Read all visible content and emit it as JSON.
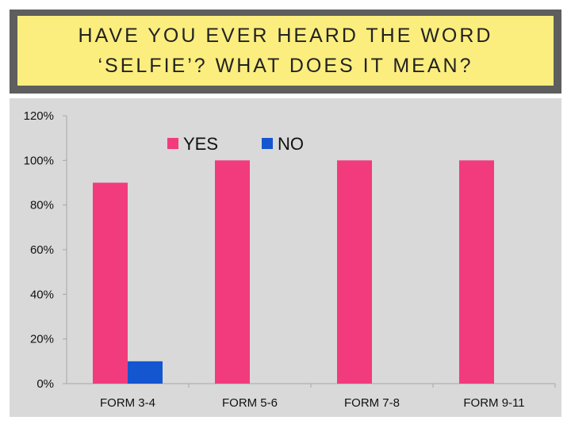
{
  "title": {
    "line1": "HAVE YOU EVER HEARD THE WORD",
    "line2": "‘SELFIE’? WHAT DOES IT MEAN?"
  },
  "colors": {
    "title_bg": "#fbee7e",
    "frame": "#5e5e5e",
    "plot_bg": "#d9d9d9",
    "yes": "#f23b7c",
    "no": "#1455d0"
  },
  "chart_data": {
    "type": "bar",
    "categories": [
      "FORM 3-4",
      "FORM 5-6",
      "FORM 7-8",
      "FORM 9-11"
    ],
    "series": [
      {
        "name": "YES",
        "values": [
          90,
          100,
          100,
          100
        ]
      },
      {
        "name": "NO",
        "values": [
          10,
          0,
          0,
          0
        ]
      }
    ],
    "ylim": [
      0,
      120
    ],
    "yticks": [
      "0%",
      "20%",
      "40%",
      "60%",
      "80%",
      "100%",
      "120%"
    ],
    "ytick_values": [
      0,
      20,
      40,
      60,
      80,
      100,
      120
    ],
    "legend": "top",
    "grid": false
  }
}
